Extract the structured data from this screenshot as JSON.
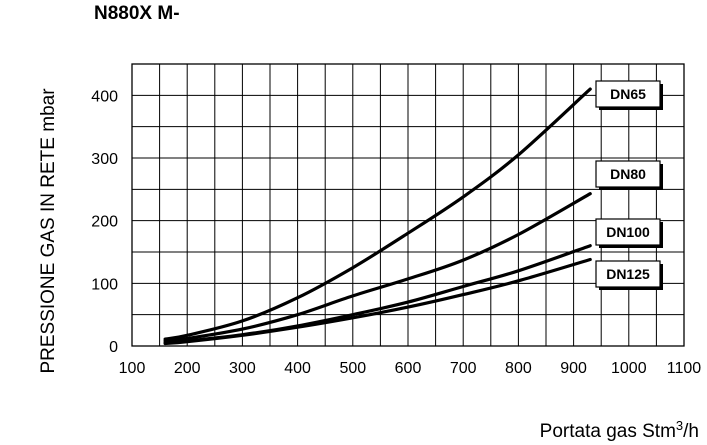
{
  "chart_data": {
    "type": "line",
    "title": "N880X M-",
    "ylabel": "PRESSIONE GAS IN RETE mbar",
    "xlabel": "Portata gas Stm",
    "xlabel_sup": "3",
    "xlabel_suffix": "/h",
    "xlim": [
      100,
      1100
    ],
    "ylim": [
      0,
      450
    ],
    "xticks": [
      100,
      200,
      300,
      400,
      500,
      600,
      700,
      800,
      900,
      1000,
      1100
    ],
    "yticks": [
      0,
      100,
      200,
      300,
      400
    ],
    "grid": true,
    "series": [
      {
        "name": "DN65",
        "x": [
          160,
          200,
          300,
          400,
          500,
          600,
          700,
          800,
          930
        ],
        "y": [
          11,
          17,
          40,
          77,
          125,
          180,
          238,
          305,
          410
        ]
      },
      {
        "name": "DN80",
        "x": [
          160,
          200,
          300,
          400,
          500,
          600,
          700,
          800,
          930
        ],
        "y": [
          8,
          12,
          27,
          50,
          80,
          107,
          137,
          178,
          243
        ]
      },
      {
        "name": "DN100",
        "x": [
          160,
          200,
          300,
          400,
          500,
          600,
          700,
          800,
          930
        ],
        "y": [
          5,
          8,
          18,
          32,
          50,
          70,
          95,
          120,
          160
        ]
      },
      {
        "name": "DN125",
        "x": [
          160,
          200,
          300,
          400,
          500,
          600,
          700,
          800,
          930
        ],
        "y": [
          4,
          7,
          17,
          30,
          45,
          62,
          82,
          104,
          138
        ]
      }
    ]
  }
}
